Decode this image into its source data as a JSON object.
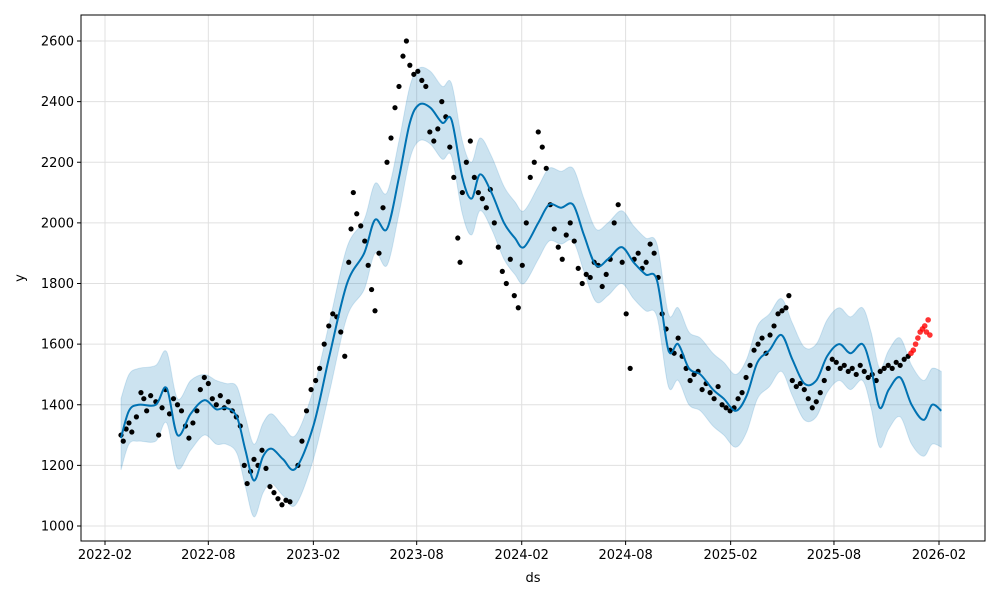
{
  "chart_data": {
    "type": "line",
    "title": "",
    "xlabel": "ds",
    "ylabel": "y",
    "xlim": [
      "2022-01-05",
      "2026-03-20"
    ],
    "ylim": [
      950,
      2680
    ],
    "grid": true,
    "x_ticks": [
      "2022-02",
      "2022-08",
      "2023-02",
      "2023-08",
      "2024-02",
      "2024-08",
      "2025-02",
      "2025-08",
      "2026-02"
    ],
    "y_ticks": [
      1000,
      1200,
      1400,
      1600,
      1800,
      2000,
      2200,
      2400,
      2600
    ],
    "colors": {
      "forecast": "#0072B2",
      "interval": "#0072B2",
      "observed": "#000000",
      "highlight": "#ff0000"
    },
    "forecast": [
      [
        "2022-03-01",
        1290,
        1185,
        1420
      ],
      [
        "2022-03-15",
        1380,
        1270,
        1500
      ],
      [
        "2022-04-01",
        1400,
        1280,
        1520
      ],
      [
        "2022-05-01",
        1400,
        1280,
        1530
      ],
      [
        "2022-05-20",
        1455,
        1340,
        1575
      ],
      [
        "2022-06-08",
        1300,
        1190,
        1420
      ],
      [
        "2022-07-01",
        1370,
        1250,
        1480
      ],
      [
        "2022-07-25",
        1415,
        1300,
        1500
      ],
      [
        "2022-08-15",
        1385,
        1270,
        1480
      ],
      [
        "2022-09-01",
        1390,
        1270,
        1470
      ],
      [
        "2022-09-20",
        1360,
        1240,
        1460
      ],
      [
        "2022-10-05",
        1250,
        1130,
        1360
      ],
      [
        "2022-10-20",
        1150,
        1030,
        1270
      ],
      [
        "2022-11-05",
        1230,
        1110,
        1340
      ],
      [
        "2022-11-20",
        1255,
        1140,
        1370
      ],
      [
        "2022-12-10",
        1220,
        1100,
        1330
      ],
      [
        "2023-01-01",
        1190,
        1070,
        1300
      ],
      [
        "2023-02-01",
        1330,
        1220,
        1450
      ],
      [
        "2023-03-01",
        1560,
        1440,
        1670
      ],
      [
        "2023-04-01",
        1800,
        1690,
        1920
      ],
      [
        "2023-05-01",
        1900,
        1780,
        2010
      ],
      [
        "2023-05-20",
        2010,
        1900,
        2130
      ],
      [
        "2023-06-10",
        1980,
        1860,
        2100
      ],
      [
        "2023-07-01",
        2150,
        2030,
        2270
      ],
      [
        "2023-07-20",
        2330,
        2210,
        2450
      ],
      [
        "2023-08-05",
        2390,
        2270,
        2510
      ],
      [
        "2023-08-25",
        2380,
        2260,
        2500
      ],
      [
        "2023-09-15",
        2330,
        2210,
        2450
      ],
      [
        "2023-10-01",
        2340,
        2220,
        2460
      ],
      [
        "2023-10-20",
        2150,
        2030,
        2270
      ],
      [
        "2023-11-05",
        2080,
        1960,
        2200
      ],
      [
        "2023-11-20",
        2160,
        2040,
        2280
      ],
      [
        "2023-12-10",
        2100,
        1980,
        2220
      ],
      [
        "2024-01-01",
        2000,
        1880,
        2120
      ],
      [
        "2024-01-20",
        1950,
        1830,
        2070
      ],
      [
        "2024-02-05",
        1920,
        1800,
        2040
      ],
      [
        "2024-03-01",
        2000,
        1880,
        2120
      ],
      [
        "2024-03-20",
        2060,
        1940,
        2180
      ],
      [
        "2024-04-10",
        2050,
        1930,
        2170
      ],
      [
        "2024-05-01",
        2060,
        1940,
        2180
      ],
      [
        "2024-05-20",
        1960,
        1840,
        2080
      ],
      [
        "2024-06-10",
        1860,
        1740,
        1980
      ],
      [
        "2024-07-01",
        1880,
        1760,
        2000
      ],
      [
        "2024-07-25",
        1920,
        1800,
        2040
      ],
      [
        "2024-08-15",
        1870,
        1750,
        1990
      ],
      [
        "2024-09-05",
        1830,
        1710,
        1950
      ],
      [
        "2024-09-25",
        1810,
        1690,
        1930
      ],
      [
        "2024-10-15",
        1580,
        1460,
        1700
      ],
      [
        "2024-11-01",
        1600,
        1480,
        1720
      ],
      [
        "2024-11-20",
        1520,
        1400,
        1640
      ],
      [
        "2024-12-10",
        1500,
        1380,
        1620
      ],
      [
        "2025-01-01",
        1450,
        1330,
        1570
      ],
      [
        "2025-01-20",
        1420,
        1300,
        1540
      ],
      [
        "2025-02-10",
        1380,
        1260,
        1500
      ],
      [
        "2025-03-01",
        1430,
        1310,
        1550
      ],
      [
        "2025-03-20",
        1540,
        1420,
        1660
      ],
      [
        "2025-04-10",
        1580,
        1460,
        1700
      ],
      [
        "2025-05-01",
        1630,
        1510,
        1750
      ],
      [
        "2025-05-20",
        1550,
        1430,
        1670
      ],
      [
        "2025-06-10",
        1470,
        1350,
        1590
      ],
      [
        "2025-07-01",
        1480,
        1360,
        1600
      ],
      [
        "2025-07-20",
        1560,
        1440,
        1680
      ],
      [
        "2025-08-10",
        1600,
        1480,
        1720
      ],
      [
        "2025-08-30",
        1570,
        1450,
        1690
      ],
      [
        "2025-09-20",
        1600,
        1480,
        1720
      ],
      [
        "2025-10-05",
        1520,
        1390,
        1640
      ],
      [
        "2025-10-20",
        1390,
        1260,
        1520
      ],
      [
        "2025-11-05",
        1450,
        1320,
        1580
      ],
      [
        "2025-11-25",
        1490,
        1360,
        1620
      ],
      [
        "2025-12-15",
        1400,
        1270,
        1530
      ],
      [
        "2026-01-05",
        1350,
        1230,
        1480
      ],
      [
        "2026-01-20",
        1400,
        1270,
        1520
      ],
      [
        "2026-02-05",
        1380,
        1260,
        1510
      ]
    ],
    "observed": [
      [
        "2022-03-01",
        1300
      ],
      [
        "2022-03-05",
        1280
      ],
      [
        "2022-03-10",
        1320
      ],
      [
        "2022-03-15",
        1340
      ],
      [
        "2022-03-20",
        1310
      ],
      [
        "2022-03-28",
        1360
      ],
      [
        "2022-04-05",
        1440
      ],
      [
        "2022-04-10",
        1420
      ],
      [
        "2022-04-15",
        1380
      ],
      [
        "2022-04-22",
        1430
      ],
      [
        "2022-05-01",
        1410
      ],
      [
        "2022-05-06",
        1300
      ],
      [
        "2022-05-12",
        1390
      ],
      [
        "2022-05-18",
        1450
      ],
      [
        "2022-05-25",
        1370
      ],
      [
        "2022-06-01",
        1420
      ],
      [
        "2022-06-08",
        1400
      ],
      [
        "2022-06-15",
        1380
      ],
      [
        "2022-06-22",
        1330
      ],
      [
        "2022-06-28",
        1290
      ],
      [
        "2022-07-05",
        1340
      ],
      [
        "2022-07-12",
        1380
      ],
      [
        "2022-07-18",
        1450
      ],
      [
        "2022-07-25",
        1490
      ],
      [
        "2022-08-01",
        1470
      ],
      [
        "2022-08-08",
        1420
      ],
      [
        "2022-08-15",
        1400
      ],
      [
        "2022-08-22",
        1430
      ],
      [
        "2022-08-29",
        1390
      ],
      [
        "2022-09-05",
        1410
      ],
      [
        "2022-09-12",
        1380
      ],
      [
        "2022-09-19",
        1360
      ],
      [
        "2022-09-26",
        1330
      ],
      [
        "2022-10-03",
        1200
      ],
      [
        "2022-10-08",
        1140
      ],
      [
        "2022-10-14",
        1180
      ],
      [
        "2022-10-20",
        1220
      ],
      [
        "2022-10-27",
        1200
      ],
      [
        "2022-11-03",
        1250
      ],
      [
        "2022-11-10",
        1190
      ],
      [
        "2022-11-17",
        1130
      ],
      [
        "2022-11-24",
        1110
      ],
      [
        "2022-12-01",
        1090
      ],
      [
        "2022-12-08",
        1070
      ],
      [
        "2022-12-15",
        1085
      ],
      [
        "2022-12-22",
        1080
      ],
      [
        "2023-01-05",
        1200
      ],
      [
        "2023-01-12",
        1280
      ],
      [
        "2023-01-20",
        1380
      ],
      [
        "2023-01-28",
        1450
      ],
      [
        "2023-02-05",
        1480
      ],
      [
        "2023-02-12",
        1520
      ],
      [
        "2023-02-20",
        1600
      ],
      [
        "2023-02-28",
        1660
      ],
      [
        "2023-03-07",
        1700
      ],
      [
        "2023-03-14",
        1690
      ],
      [
        "2023-03-21",
        1640
      ],
      [
        "2023-03-28",
        1560
      ],
      [
        "2023-04-04",
        1870
      ],
      [
        "2023-04-08",
        1980
      ],
      [
        "2023-04-12",
        2100
      ],
      [
        "2023-04-18",
        2030
      ],
      [
        "2023-04-25",
        1990
      ],
      [
        "2023-05-02",
        1940
      ],
      [
        "2023-05-08",
        1860
      ],
      [
        "2023-05-14",
        1780
      ],
      [
        "2023-05-20",
        1710
      ],
      [
        "2023-05-27",
        1900
      ],
      [
        "2023-06-03",
        2050
      ],
      [
        "2023-06-10",
        2200
      ],
      [
        "2023-06-17",
        2280
      ],
      [
        "2023-06-24",
        2380
      ],
      [
        "2023-07-01",
        2450
      ],
      [
        "2023-07-08",
        2550
      ],
      [
        "2023-07-14",
        2600
      ],
      [
        "2023-07-20",
        2520
      ],
      [
        "2023-07-27",
        2490
      ],
      [
        "2023-08-03",
        2500
      ],
      [
        "2023-08-10",
        2470
      ],
      [
        "2023-08-17",
        2450
      ],
      [
        "2023-08-24",
        2300
      ],
      [
        "2023-08-31",
        2270
      ],
      [
        "2023-09-07",
        2310
      ],
      [
        "2023-09-14",
        2400
      ],
      [
        "2023-09-21",
        2350
      ],
      [
        "2023-09-28",
        2250
      ],
      [
        "2023-10-05",
        2150
      ],
      [
        "2023-10-12",
        1950
      ],
      [
        "2023-10-16",
        1870
      ],
      [
        "2023-10-20",
        2100
      ],
      [
        "2023-10-27",
        2200
      ],
      [
        "2023-11-03",
        2270
      ],
      [
        "2023-11-10",
        2150
      ],
      [
        "2023-11-17",
        2100
      ],
      [
        "2023-11-24",
        2080
      ],
      [
        "2023-12-01",
        2050
      ],
      [
        "2023-12-08",
        2110
      ],
      [
        "2023-12-15",
        2000
      ],
      [
        "2023-12-22",
        1920
      ],
      [
        "2023-12-29",
        1840
      ],
      [
        "2024-01-05",
        1800
      ],
      [
        "2024-01-12",
        1880
      ],
      [
        "2024-01-19",
        1760
      ],
      [
        "2024-01-26",
        1720
      ],
      [
        "2024-02-02",
        1860
      ],
      [
        "2024-02-09",
        2000
      ],
      [
        "2024-02-16",
        2150
      ],
      [
        "2024-02-23",
        2200
      ],
      [
        "2024-03-01",
        2300
      ],
      [
        "2024-03-08",
        2250
      ],
      [
        "2024-03-15",
        2180
      ],
      [
        "2024-03-22",
        2060
      ],
      [
        "2024-03-29",
        1980
      ],
      [
        "2024-04-05",
        1920
      ],
      [
        "2024-04-12",
        1880
      ],
      [
        "2024-04-19",
        1960
      ],
      [
        "2024-04-26",
        2000
      ],
      [
        "2024-05-03",
        1940
      ],
      [
        "2024-05-10",
        1850
      ],
      [
        "2024-05-17",
        1800
      ],
      [
        "2024-05-24",
        1830
      ],
      [
        "2024-05-31",
        1820
      ],
      [
        "2024-06-07",
        1870
      ],
      [
        "2024-06-14",
        1860
      ],
      [
        "2024-06-21",
        1790
      ],
      [
        "2024-06-28",
        1830
      ],
      [
        "2024-07-05",
        1880
      ],
      [
        "2024-07-12",
        2000
      ],
      [
        "2024-07-19",
        2060
      ],
      [
        "2024-07-26",
        1870
      ],
      [
        "2024-08-02",
        1700
      ],
      [
        "2024-08-09",
        1520
      ],
      [
        "2024-08-16",
        1880
      ],
      [
        "2024-08-23",
        1900
      ],
      [
        "2024-08-30",
        1850
      ],
      [
        "2024-09-06",
        1870
      ],
      [
        "2024-09-13",
        1930
      ],
      [
        "2024-09-20",
        1900
      ],
      [
        "2024-09-27",
        1820
      ],
      [
        "2024-10-04",
        1700
      ],
      [
        "2024-10-11",
        1650
      ],
      [
        "2024-10-18",
        1580
      ],
      [
        "2024-10-25",
        1570
      ],
      [
        "2024-11-01",
        1620
      ],
      [
        "2024-11-08",
        1560
      ],
      [
        "2024-11-15",
        1520
      ],
      [
        "2024-11-22",
        1480
      ],
      [
        "2024-11-29",
        1500
      ],
      [
        "2024-12-06",
        1510
      ],
      [
        "2024-12-13",
        1450
      ],
      [
        "2024-12-20",
        1470
      ],
      [
        "2024-12-27",
        1440
      ],
      [
        "2025-01-03",
        1420
      ],
      [
        "2025-01-10",
        1460
      ],
      [
        "2025-01-17",
        1400
      ],
      [
        "2025-01-24",
        1390
      ],
      [
        "2025-01-31",
        1380
      ],
      [
        "2025-02-07",
        1390
      ],
      [
        "2025-02-14",
        1420
      ],
      [
        "2025-02-21",
        1440
      ],
      [
        "2025-02-28",
        1490
      ],
      [
        "2025-03-07",
        1530
      ],
      [
        "2025-03-14",
        1580
      ],
      [
        "2025-03-21",
        1600
      ],
      [
        "2025-03-28",
        1620
      ],
      [
        "2025-04-04",
        1570
      ],
      [
        "2025-04-11",
        1630
      ],
      [
        "2025-04-18",
        1660
      ],
      [
        "2025-04-25",
        1700
      ],
      [
        "2025-05-02",
        1710
      ],
      [
        "2025-05-09",
        1720
      ],
      [
        "2025-05-14",
        1760
      ],
      [
        "2025-05-20",
        1480
      ],
      [
        "2025-05-27",
        1460
      ],
      [
        "2025-06-03",
        1470
      ],
      [
        "2025-06-10",
        1450
      ],
      [
        "2025-06-17",
        1420
      ],
      [
        "2025-06-24",
        1390
      ],
      [
        "2025-07-01",
        1410
      ],
      [
        "2025-07-08",
        1440
      ],
      [
        "2025-07-15",
        1480
      ],
      [
        "2025-07-22",
        1520
      ],
      [
        "2025-07-29",
        1550
      ],
      [
        "2025-08-05",
        1540
      ],
      [
        "2025-08-12",
        1520
      ],
      [
        "2025-08-19",
        1530
      ],
      [
        "2025-08-26",
        1510
      ],
      [
        "2025-09-02",
        1520
      ],
      [
        "2025-09-09",
        1500
      ],
      [
        "2025-09-16",
        1530
      ],
      [
        "2025-09-23",
        1510
      ],
      [
        "2025-09-30",
        1490
      ],
      [
        "2025-10-07",
        1500
      ],
      [
        "2025-10-14",
        1480
      ],
      [
        "2025-10-21",
        1510
      ],
      [
        "2025-10-28",
        1520
      ],
      [
        "2025-11-04",
        1530
      ],
      [
        "2025-11-11",
        1520
      ],
      [
        "2025-11-18",
        1540
      ],
      [
        "2025-11-25",
        1530
      ],
      [
        "2025-12-02",
        1550
      ],
      [
        "2025-12-09",
        1560
      ]
    ],
    "highlighted": [
      [
        "2025-12-14",
        1570
      ],
      [
        "2025-12-18",
        1580
      ],
      [
        "2025-12-22",
        1600
      ],
      [
        "2025-12-26",
        1620
      ],
      [
        "2025-12-30",
        1640
      ],
      [
        "2026-01-03",
        1650
      ],
      [
        "2026-01-07",
        1660
      ],
      [
        "2026-01-10",
        1640
      ],
      [
        "2026-01-13",
        1680
      ],
      [
        "2026-01-16",
        1630
      ]
    ]
  }
}
